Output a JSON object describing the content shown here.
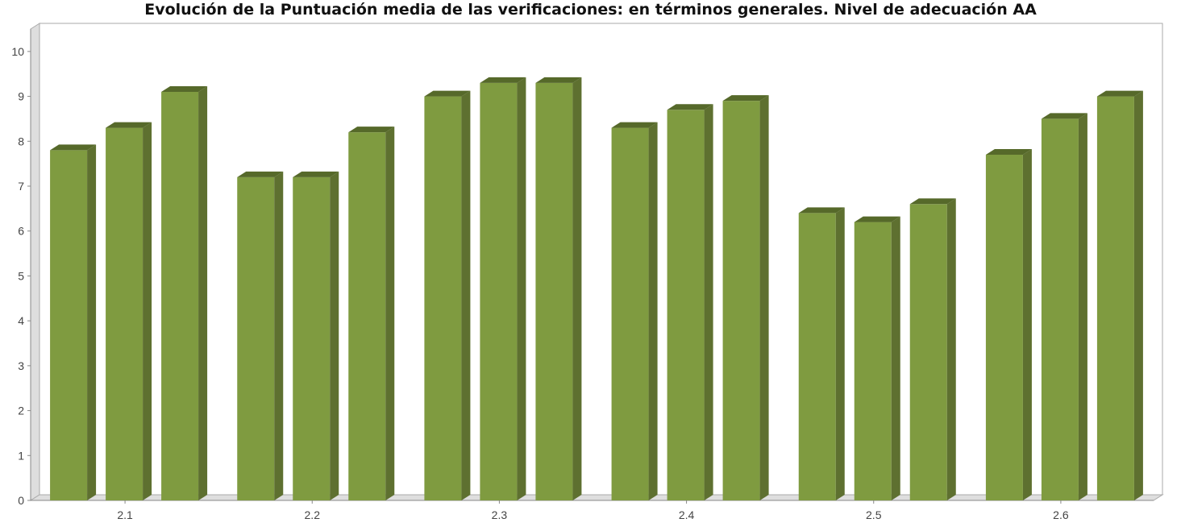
{
  "chart_data": {
    "type": "bar",
    "title": "Evolución de la Puntuación media de las verificaciones: en términos generales. Nivel de adecuación AA",
    "xlabel": "",
    "ylabel": "",
    "categories": [
      "2.1",
      "2.2",
      "2.3",
      "2.4",
      "2.5",
      "2.6"
    ],
    "series": [
      {
        "values": [
          7.8,
          7.2,
          9.0,
          8.3,
          6.4,
          7.7
        ]
      },
      {
        "values": [
          8.3,
          7.2,
          9.3,
          8.7,
          6.2,
          8.5
        ]
      },
      {
        "values": [
          9.1,
          8.2,
          9.3,
          8.9,
          6.6,
          9.0
        ]
      }
    ],
    "ylim": [
      0,
      10.5
    ],
    "yticks": [
      "0",
      "1",
      "2",
      "3",
      "4",
      "5",
      "6",
      "7",
      "8",
      "9",
      "10"
    ],
    "grid": false,
    "legend": "none",
    "colors": {
      "bar_front": "#7f9b40",
      "bar_side": "#5e7030",
      "bar_top": "#56692a",
      "frame": "#aaaaaa",
      "wall": "#dedede"
    }
  }
}
